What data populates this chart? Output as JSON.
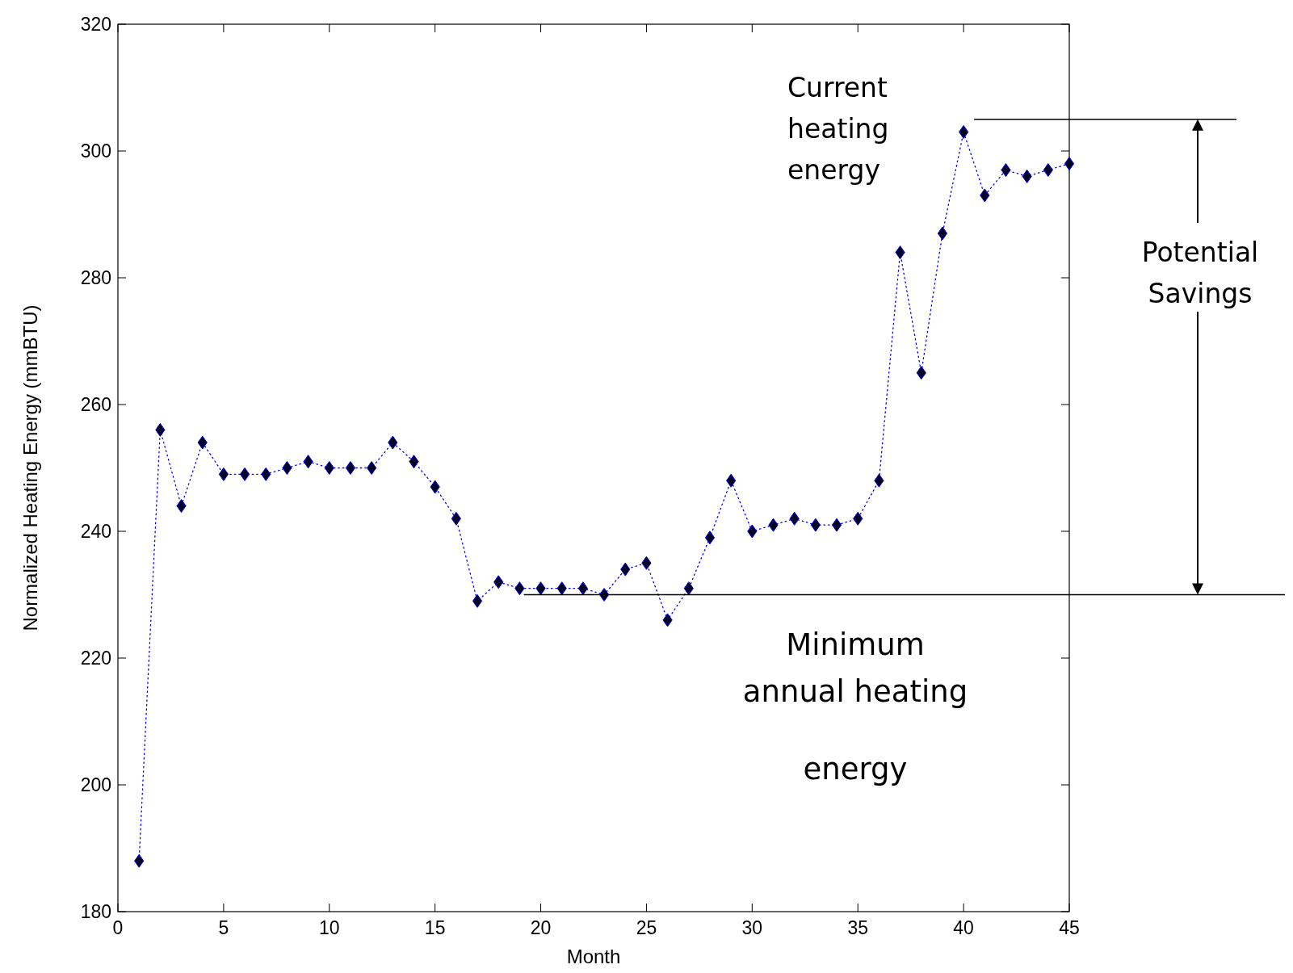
{
  "chart_data": {
    "type": "line",
    "xlabel": "Month",
    "ylabel": "Normalized Heating Energy (mmBTU)",
    "x": [
      1,
      2,
      3,
      4,
      5,
      6,
      7,
      8,
      9,
      10,
      11,
      12,
      13,
      14,
      15,
      16,
      17,
      18,
      19,
      20,
      21,
      22,
      23,
      24,
      25,
      26,
      27,
      28,
      29,
      30,
      31,
      32,
      33,
      34,
      35,
      36,
      37,
      38,
      39,
      40,
      41,
      42,
      43,
      44,
      45
    ],
    "series": [
      {
        "color": "#0000ff",
        "values": [
          188,
          256,
          244,
          254,
          249,
          249,
          249,
          250,
          251,
          250,
          250,
          250,
          254,
          251,
          247,
          242,
          229,
          232,
          231,
          231,
          231,
          231,
          230,
          234,
          235,
          226,
          231,
          239,
          248,
          240,
          241,
          242,
          241,
          241,
          242,
          248,
          284,
          265,
          287,
          303,
          293,
          297,
          296,
          297,
          298
        ]
      }
    ],
    "marker": "diamond",
    "line_style": "dotted",
    "grid": false,
    "xlim": [
      0,
      45
    ],
    "xticks": [
      0,
      5,
      10,
      15,
      20,
      25,
      30,
      35,
      40,
      45
    ],
    "ylim": [
      180,
      320
    ],
    "yticks": [
      180,
      200,
      220,
      240,
      260,
      280,
      300,
      320
    ],
    "ref_lines": [
      {
        "axis": "y",
        "value": 230,
        "label": "Minimum annual heating energy",
        "color": "#000000"
      },
      {
        "axis": "y",
        "value": 305,
        "color": "#000000"
      }
    ],
    "annotations": [
      "Potential Savings",
      "Current heating energy"
    ]
  }
}
